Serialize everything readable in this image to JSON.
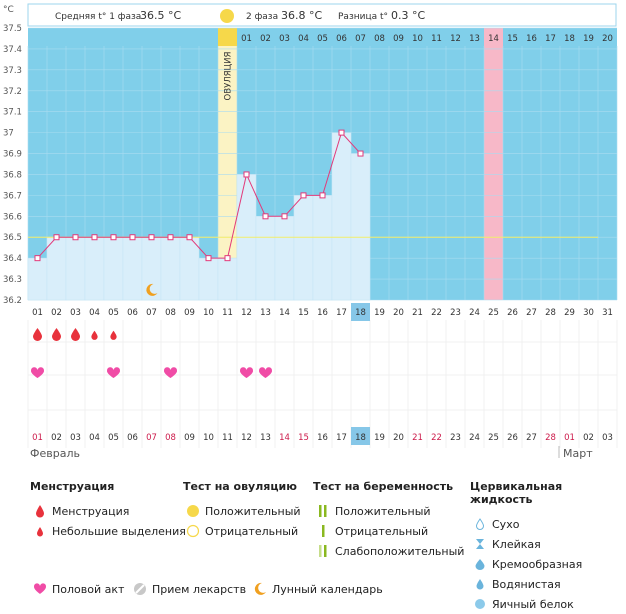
{
  "unit_label": "°C",
  "header": {
    "phase1_label": "Средняя t° 1 фаза",
    "phase1_value": "36.5 °C",
    "phase2_label": "2 фаза",
    "phase2_value": "36.8 °C",
    "diff_label": "Разница t°",
    "diff_value": "0.3 °C"
  },
  "ovulation_label": "ОВУЛЯЦИЯ",
  "colors": {
    "phase1_bg": "#80cfea",
    "phase2_bg": "#80cfea",
    "ovulation_bg": "#fbf3c4",
    "ovulation_header": "#f6d84a",
    "highlight_day": "#f7b8c8",
    "line": "#e23a7a",
    "bar_fill": "#d9eefa",
    "coverline": "#f3ed6a",
    "selected_day": "#86c7e8"
  },
  "chart_data": {
    "type": "line",
    "x": [
      "01",
      "02",
      "03",
      "04",
      "05",
      "06",
      "07",
      "08",
      "09",
      "10",
      "11",
      "12",
      "13",
      "14",
      "15",
      "16",
      "17",
      "18",
      "19",
      "20",
      "21",
      "22",
      "23",
      "24",
      "25",
      "26",
      "27",
      "28",
      "29",
      "30",
      "31"
    ],
    "series": [
      {
        "values": [
          36.4,
          36.5,
          36.5,
          36.5,
          36.5,
          36.5,
          36.5,
          36.5,
          36.5,
          36.4,
          36.4,
          36.8,
          36.6,
          36.6,
          36.7,
          36.7,
          37.0,
          36.9,
          null,
          null,
          null,
          null,
          null,
          null,
          null,
          null,
          null,
          null,
          null,
          null,
          null
        ]
      }
    ],
    "ylim": [
      36.2,
      37.5
    ],
    "yticks": [
      "37.5",
      "37.4",
      "37.3",
      "37.2",
      "37.1",
      "37",
      "36.9",
      "36.8",
      "36.7",
      "36.6",
      "36.5",
      "36.4",
      "36.3",
      "36.2"
    ],
    "coverline": 36.5,
    "phase_day_labels": [
      "01",
      "02",
      "03",
      "04",
      "05",
      "06",
      "07",
      "08",
      "09",
      "10",
      "11",
      "12",
      "13",
      "14",
      "15",
      "16",
      "17",
      "18",
      "19",
      "20"
    ],
    "ovulation_day": "11",
    "highlighted_day": "25",
    "selected_day": "18"
  },
  "bottom_dates": {
    "labels": [
      "01",
      "02",
      "03",
      "04",
      "05",
      "06",
      "07",
      "08",
      "09",
      "10",
      "11",
      "12",
      "13",
      "14",
      "15",
      "16",
      "17",
      "18",
      "19",
      "20",
      "21",
      "22",
      "23",
      "24",
      "25",
      "26",
      "27",
      "28",
      "01",
      "02",
      "03"
    ],
    "red_indices": [
      0,
      6,
      7,
      13,
      14,
      20,
      21,
      27,
      28
    ],
    "month1": "Февраль",
    "month2": "Март"
  },
  "marks": {
    "menstruation_big": [
      "01",
      "02",
      "03"
    ],
    "menstruation_small": [
      "04",
      "05"
    ],
    "intercourse": [
      "01",
      "05",
      "08",
      "12",
      "13"
    ],
    "moon_day": "07"
  },
  "legend": {
    "menstruation": {
      "title": "Менструация",
      "items": [
        "Менструация",
        "Небольшие выделения"
      ]
    },
    "ovulation_test": {
      "title": "Тест на овуляцию",
      "items": [
        "Положительный",
        "Отрицательный"
      ]
    },
    "pregnancy_test": {
      "title": "Тест на беременность",
      "items": [
        "Положительный",
        "Отрицательный",
        "Слабоположительный"
      ]
    },
    "cervical": {
      "title": "Цервикальная жидкость",
      "items": [
        "Сухо",
        "Клейкая",
        "Кремообразная",
        "Водянистая",
        "Яичный белок"
      ]
    },
    "bottom": [
      "Половой акт",
      "Прием лекарств",
      "Лунный календарь"
    ]
  }
}
